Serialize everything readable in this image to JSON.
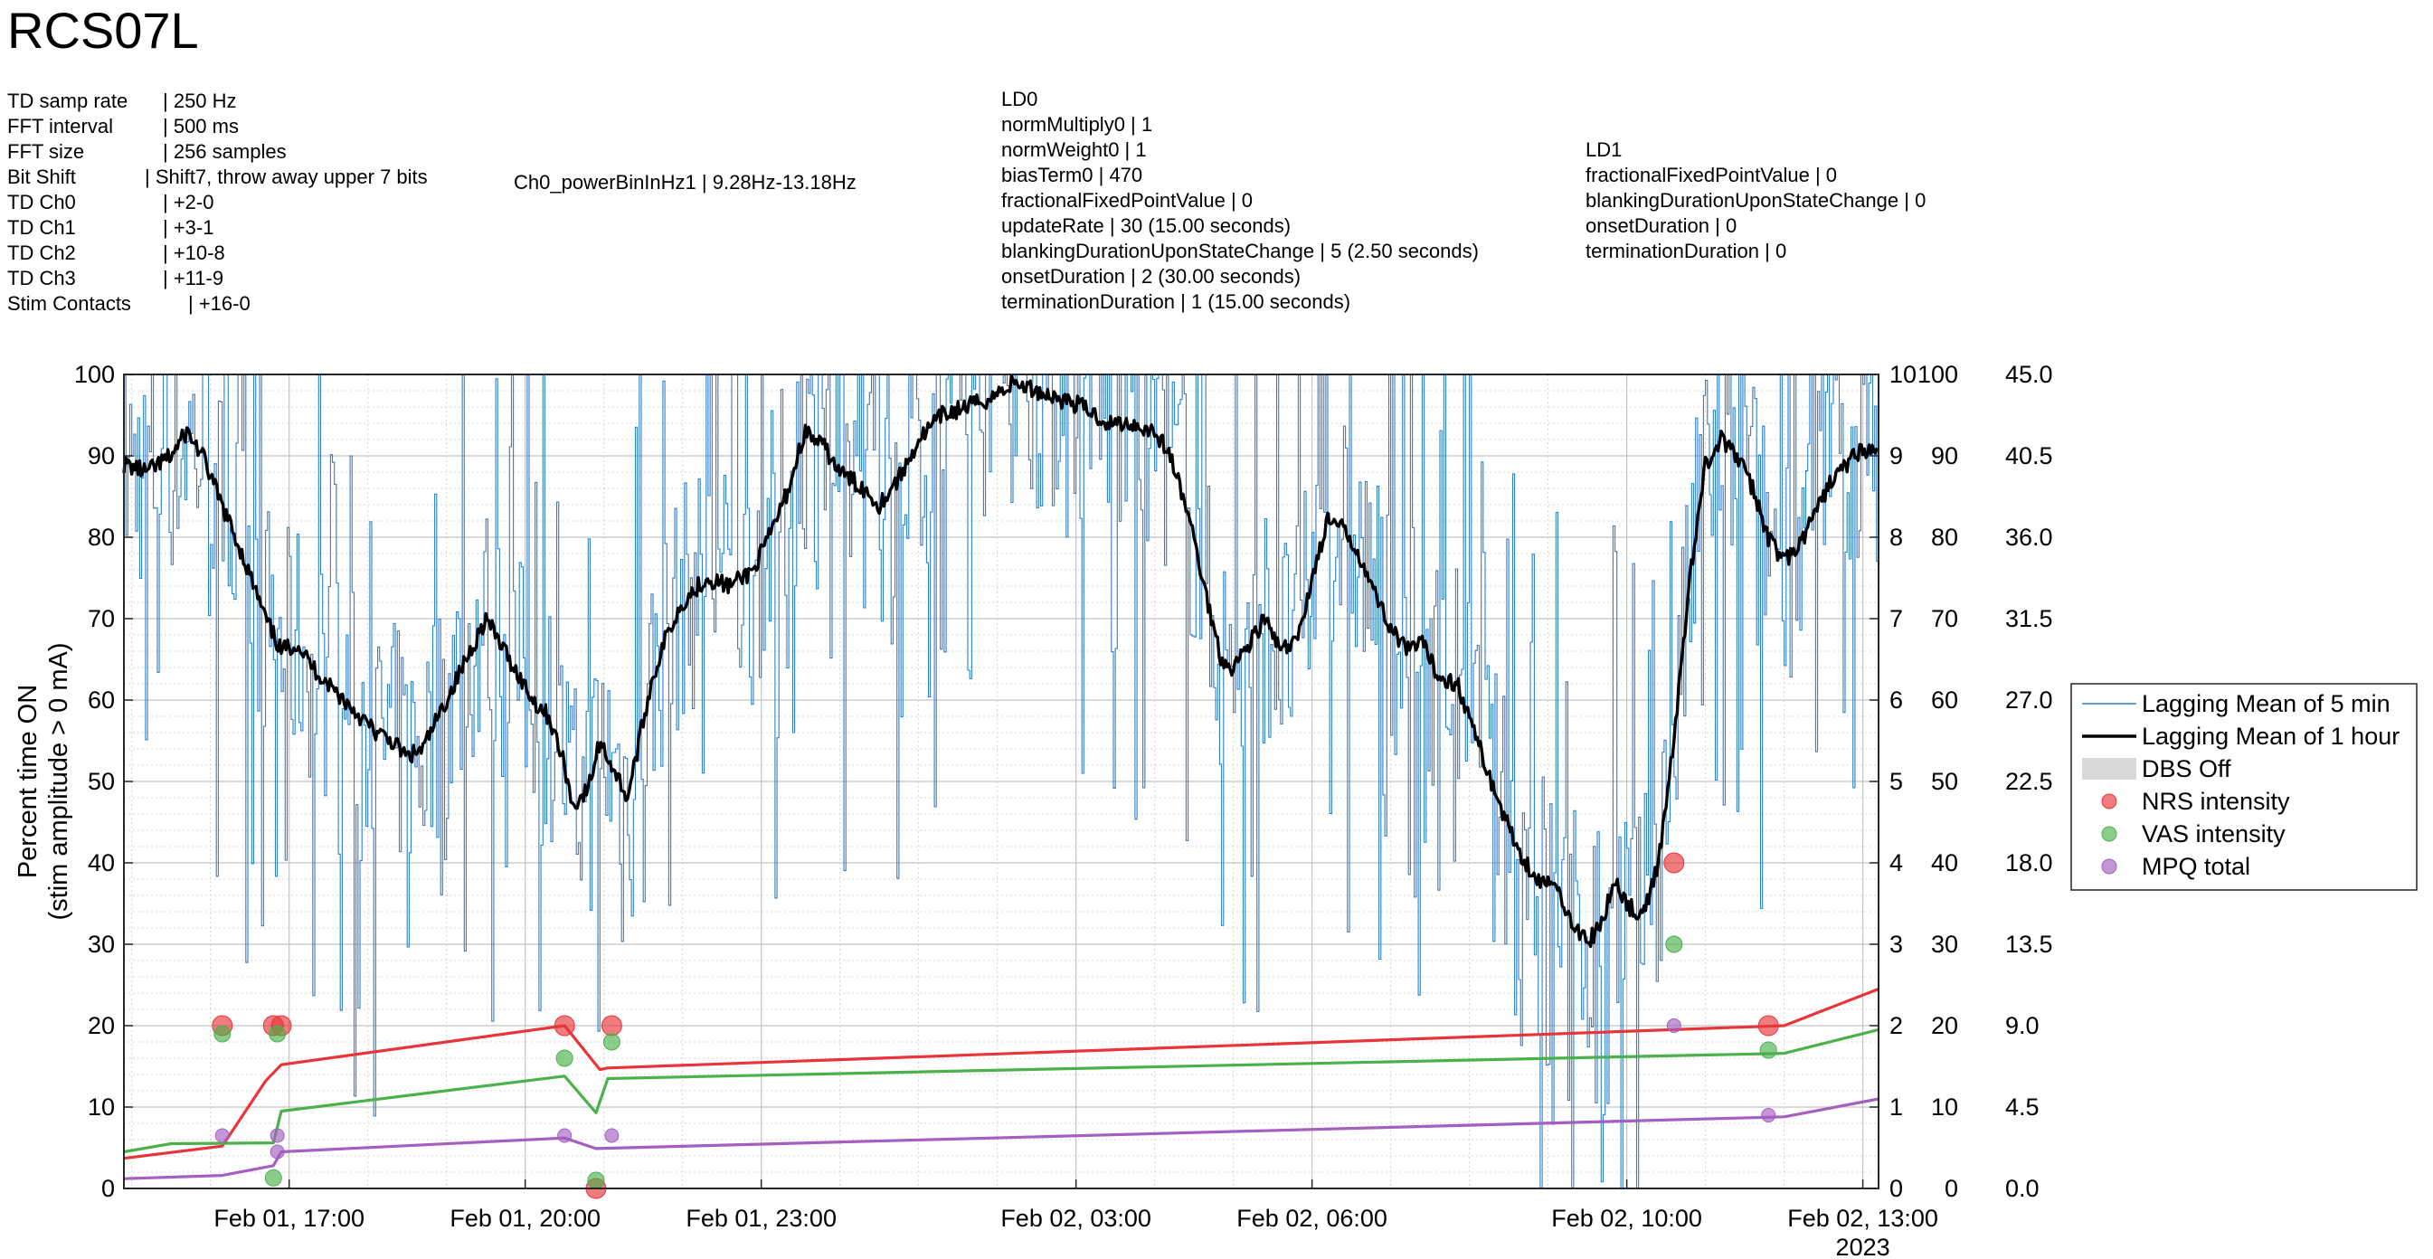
{
  "title": "RCS07L",
  "td_settings": [
    {
      "key": "TD samp rate",
      "value": "250 Hz"
    },
    {
      "key": "FFT interval",
      "value": "500 ms"
    },
    {
      "key": "FFT size",
      "value": "256 samples"
    },
    {
      "key": "Bit Shift",
      "value": "Shift7, throw away upper 7 bits"
    },
    {
      "key": "TD Ch0",
      "value": "+2-0"
    },
    {
      "key": "TD Ch1",
      "value": "+3-1"
    },
    {
      "key": "TD Ch2",
      "value": "+10-8"
    },
    {
      "key": "TD Ch3",
      "value": "+11-9"
    },
    {
      "key": "Stim Contacts",
      "value": "+16-0"
    }
  ],
  "power_bin": {
    "key": "Ch0_powerBinInHz1",
    "value": "9.28Hz-13.18Hz"
  },
  "ld0": {
    "title": "LD0",
    "rows": [
      {
        "key": "normMultiply0",
        "value": "1"
      },
      {
        "key": "normWeight0",
        "value": "1"
      },
      {
        "key": "biasTerm0",
        "value": "470"
      },
      {
        "key": "fractionalFixedPointValue",
        "value": "0"
      },
      {
        "key": "updateRate",
        "value": "30 (15.00 seconds)"
      },
      {
        "key": "blankingDurationUponStateChange",
        "value": "5 (2.50 seconds)"
      },
      {
        "key": "onsetDuration",
        "value": "2 (30.00 seconds)"
      },
      {
        "key": "terminationDuration",
        "value": "1 (15.00 seconds)"
      }
    ]
  },
  "ld1": {
    "title": "LD1",
    "rows": [
      {
        "key": "fractionalFixedPointValue",
        "value": "0"
      },
      {
        "key": "blankingDurationUponStateChange",
        "value": "0"
      },
      {
        "key": "onsetDuration",
        "value": "0"
      },
      {
        "key": "terminationDuration",
        "value": "0"
      }
    ]
  },
  "chart_data": {
    "type": "line",
    "ylabel": [
      "Percent time ON",
      "(stim amplitude > 0 mA)"
    ],
    "ylim": [
      0,
      100
    ],
    "y_ticks": [
      0,
      10,
      20,
      30,
      40,
      50,
      60,
      70,
      80,
      90,
      100
    ],
    "right_axes": [
      {
        "ticks": [
          0,
          1,
          2,
          3,
          4,
          5,
          6,
          7,
          8,
          9,
          10
        ],
        "labels": [
          "0",
          "1",
          "2",
          "3",
          "4",
          "5",
          "6",
          "7",
          "8",
          "9",
          "10"
        ]
      },
      {
        "ticks": [
          0,
          10,
          20,
          30,
          40,
          50,
          60,
          70,
          80,
          90,
          100
        ],
        "labels": [
          "0",
          "10",
          "20",
          "30",
          "40",
          "50",
          "60",
          "70",
          "80",
          "90",
          "100"
        ]
      },
      {
        "ticks": [
          0,
          4.5,
          9,
          13.5,
          18,
          22.5,
          27,
          31.5,
          36,
          40.5,
          45
        ],
        "labels": [
          "0.0",
          "4.5",
          "9.0",
          "13.5",
          "18.0",
          "22.5",
          "27.0",
          "31.5",
          "36.0",
          "40.5",
          "45.0"
        ]
      }
    ],
    "x_unit": "hours since Feb 01 00:00, 2023",
    "xlim": [
      14.9,
      37.2
    ],
    "x_ticks": [
      17,
      20,
      23,
      27,
      30,
      34,
      37
    ],
    "x_tick_labels": [
      "Feb 01, 17:00",
      "Feb 01, 20:00",
      "Feb 01, 23:00",
      "Feb 02, 03:00",
      "Feb 02, 06:00",
      "Feb 02, 10:00",
      "Feb 02, 13:00"
    ],
    "x_year_label": "2023",
    "grid": true,
    "minor_grid": true,
    "legend_position": "outside right",
    "legend": [
      {
        "label": "Lagging Mean of 5 min",
        "kind": "thin-line",
        "color": "#2f7fc8"
      },
      {
        "label": "Lagging Mean of 1 hour",
        "kind": "thick-line",
        "color": "#000000"
      },
      {
        "label": "DBS Off",
        "kind": "patch",
        "color": "#d9d9d9"
      },
      {
        "label": "NRS intensity",
        "kind": "marker",
        "color": "#e8353a"
      },
      {
        "label": "VAS intensity",
        "kind": "marker",
        "color": "#4bb14b"
      },
      {
        "label": "MPQ total",
        "kind": "marker",
        "color": "#a45fc0"
      }
    ],
    "series": [
      {
        "name": "Lagging Mean of 1 hour",
        "color": "#000000",
        "points": [
          [
            14.9,
            89
          ],
          [
            15.2,
            88
          ],
          [
            15.5,
            90
          ],
          [
            15.7,
            93
          ],
          [
            15.9,
            90
          ],
          [
            16.1,
            85
          ],
          [
            16.4,
            78
          ],
          [
            16.7,
            70
          ],
          [
            16.9,
            66
          ],
          [
            17.1,
            67
          ],
          [
            17.3,
            64
          ],
          [
            17.5,
            62
          ],
          [
            17.7,
            60
          ],
          [
            17.9,
            58
          ],
          [
            18.1,
            56
          ],
          [
            18.3,
            55
          ],
          [
            18.5,
            53
          ],
          [
            18.7,
            54
          ],
          [
            18.9,
            58
          ],
          [
            19.1,
            62
          ],
          [
            19.3,
            66
          ],
          [
            19.5,
            70
          ],
          [
            19.8,
            65
          ],
          [
            20.1,
            60
          ],
          [
            20.3,
            58
          ],
          [
            20.5,
            52
          ],
          [
            20.6,
            47
          ],
          [
            20.8,
            49
          ],
          [
            20.95,
            55
          ],
          [
            21.1,
            52
          ],
          [
            21.3,
            48
          ],
          [
            21.45,
            55
          ],
          [
            21.6,
            62
          ],
          [
            21.8,
            68
          ],
          [
            22.0,
            72
          ],
          [
            22.3,
            75
          ],
          [
            22.6,
            74
          ],
          [
            22.9,
            76
          ],
          [
            23.1,
            80
          ],
          [
            23.35,
            86
          ],
          [
            23.55,
            93
          ],
          [
            23.8,
            91
          ],
          [
            24.0,
            88
          ],
          [
            24.3,
            86
          ],
          [
            24.5,
            84
          ],
          [
            24.8,
            88
          ],
          [
            25.0,
            92
          ],
          [
            25.3,
            95
          ],
          [
            25.6,
            96
          ],
          [
            25.9,
            97
          ],
          [
            26.2,
            99
          ],
          [
            26.5,
            98
          ],
          [
            26.8,
            97
          ],
          [
            27.1,
            96
          ],
          [
            27.4,
            94
          ],
          [
            27.7,
            94
          ],
          [
            28.0,
            93
          ],
          [
            28.2,
            90
          ],
          [
            28.45,
            82
          ],
          [
            28.65,
            73
          ],
          [
            28.85,
            65
          ],
          [
            29.0,
            64
          ],
          [
            29.2,
            67
          ],
          [
            29.4,
            70
          ],
          [
            29.6,
            66
          ],
          [
            29.8,
            67
          ],
          [
            30.0,
            75
          ],
          [
            30.2,
            82
          ],
          [
            30.4,
            81
          ],
          [
            30.6,
            78
          ],
          [
            30.8,
            73
          ],
          [
            31.0,
            69
          ],
          [
            31.2,
            66
          ],
          [
            31.4,
            67
          ],
          [
            31.6,
            63
          ],
          [
            31.85,
            62
          ],
          [
            32.1,
            55
          ],
          [
            32.35,
            48
          ],
          [
            32.6,
            42
          ],
          [
            32.85,
            38
          ],
          [
            33.1,
            37
          ],
          [
            33.3,
            33
          ],
          [
            33.5,
            30
          ],
          [
            33.7,
            33
          ],
          [
            33.85,
            38
          ],
          [
            34.0,
            35
          ],
          [
            34.2,
            33
          ],
          [
            34.4,
            40
          ],
          [
            34.6,
            55
          ],
          [
            34.8,
            75
          ],
          [
            35.0,
            89
          ],
          [
            35.2,
            92
          ],
          [
            35.4,
            90
          ],
          [
            35.6,
            86
          ],
          [
            35.8,
            80
          ],
          [
            36.0,
            77
          ],
          [
            36.2,
            79
          ],
          [
            36.4,
            83
          ],
          [
            36.6,
            87
          ],
          [
            36.8,
            89
          ],
          [
            37.0,
            91
          ],
          [
            37.2,
            90
          ]
        ]
      },
      {
        "name": "NRS intensity",
        "color": "#e8353a",
        "points": [
          [
            14.9,
            3.7
          ],
          [
            16.15,
            5.2
          ],
          [
            16.7,
            13.2
          ],
          [
            16.9,
            15.2
          ],
          [
            20.5,
            20.0
          ],
          [
            20.95,
            14.6
          ],
          [
            21.05,
            14.8
          ],
          [
            36.0,
            20.0
          ],
          [
            37.2,
            24.5
          ]
        ]
      },
      {
        "name": "VAS intensity",
        "color": "#4bb14b",
        "points": [
          [
            14.9,
            4.5
          ],
          [
            15.5,
            5.5
          ],
          [
            16.8,
            5.6
          ],
          [
            16.9,
            9.5
          ],
          [
            20.5,
            13.8
          ],
          [
            20.9,
            9.3
          ],
          [
            21.05,
            13.5
          ],
          [
            36.0,
            16.6
          ],
          [
            37.2,
            19.5
          ]
        ]
      },
      {
        "name": "MPQ total",
        "color": "#a45fc0",
        "points": [
          [
            14.9,
            1.2
          ],
          [
            16.15,
            1.6
          ],
          [
            16.8,
            2.8
          ],
          [
            16.9,
            4.5
          ],
          [
            20.5,
            6.2
          ],
          [
            20.9,
            4.9
          ],
          [
            36.0,
            8.8
          ],
          [
            37.2,
            11.0
          ]
        ]
      }
    ],
    "markers": [
      {
        "series": "NRS intensity",
        "x": 16.15,
        "y": 20,
        "color": "#e8353a"
      },
      {
        "series": "NRS intensity",
        "x": 16.8,
        "y": 20,
        "color": "#e8353a"
      },
      {
        "series": "NRS intensity",
        "x": 16.9,
        "y": 20,
        "color": "#e8353a"
      },
      {
        "series": "NRS intensity",
        "x": 20.5,
        "y": 20,
        "color": "#e8353a"
      },
      {
        "series": "NRS intensity",
        "x": 20.9,
        "y": 0,
        "color": "#e8353a"
      },
      {
        "series": "NRS intensity",
        "x": 21.1,
        "y": 20,
        "color": "#e8353a"
      },
      {
        "series": "NRS intensity",
        "x": 34.6,
        "y": 40,
        "color": "#e8353a"
      },
      {
        "series": "NRS intensity",
        "x": 35.8,
        "y": 20,
        "color": "#e8353a"
      },
      {
        "series": "VAS intensity",
        "x": 16.15,
        "y": 19,
        "color": "#4bb14b"
      },
      {
        "series": "VAS intensity",
        "x": 16.85,
        "y": 19,
        "color": "#4bb14b"
      },
      {
        "series": "VAS intensity",
        "x": 16.8,
        "y": 1.3,
        "color": "#4bb14b"
      },
      {
        "series": "VAS intensity",
        "x": 20.5,
        "y": 16,
        "color": "#4bb14b"
      },
      {
        "series": "VAS intensity",
        "x": 20.9,
        "y": 1,
        "color": "#4bb14b"
      },
      {
        "series": "VAS intensity",
        "x": 21.1,
        "y": 18,
        "color": "#4bb14b"
      },
      {
        "series": "VAS intensity",
        "x": 34.6,
        "y": 30,
        "color": "#4bb14b"
      },
      {
        "series": "VAS intensity",
        "x": 35.8,
        "y": 17,
        "color": "#4bb14b"
      },
      {
        "series": "MPQ total",
        "x": 16.15,
        "y": 6.5,
        "color": "#a45fc0"
      },
      {
        "series": "MPQ total",
        "x": 16.85,
        "y": 6.5,
        "color": "#a45fc0"
      },
      {
        "series": "MPQ total",
        "x": 16.85,
        "y": 4.5,
        "color": "#a45fc0"
      },
      {
        "series": "MPQ total",
        "x": 20.5,
        "y": 6.5,
        "color": "#a45fc0"
      },
      {
        "series": "MPQ total",
        "x": 21.1,
        "y": 6.5,
        "color": "#a45fc0"
      },
      {
        "series": "MPQ total",
        "x": 34.6,
        "y": 20,
        "color": "#a45fc0"
      },
      {
        "series": "MPQ total",
        "x": 35.8,
        "y": 9,
        "color": "#a45fc0"
      }
    ]
  }
}
